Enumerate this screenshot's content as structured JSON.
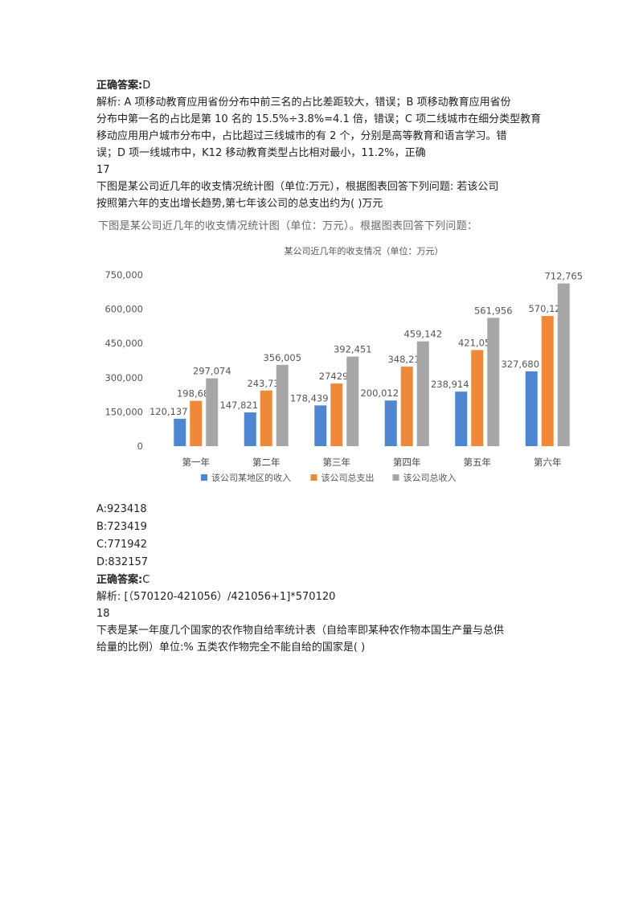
{
  "q16": {
    "answer_label": "正确答案:",
    "answer_value": "D",
    "analysis_lines": [
      "解析: A 项移动教育应用省份分布中前三名的占比差距较大，错误；B 项移动教育应用省份",
      "分布中第一名的占比是第 10 名的 15.5%÷3.8%=4.1 倍，错误；C 项二线城市在细分类型教育",
      "移动应用用户城市分布中，占比超过三线城市的有 2 个，分别是高等教育和语言学习。错",
      "误；D 项一线城市中，K12 移动教育类型占比相对最小，11.2%，正确"
    ]
  },
  "q17": {
    "number": "17",
    "question_lines": [
      "下图是某公司近几年的收支情况统计图（单位:万元），根据图表回答下列问题: 若该公司",
      "按照第六年的支出增长趋势,第七年该公司的总支出约为( )万元"
    ],
    "image_heading": "下图是某公司近几年的收支情况统计图（单位：万元）。根据图表回答下列问题：",
    "options": [
      "A:923418",
      "B:723419",
      "C:771942",
      "D:832157"
    ],
    "answer_label": "正确答案:",
    "answer_value": "C",
    "analysis": "解析: [（570120-421056）/421056+1]*570120"
  },
  "q18": {
    "number": "18",
    "question_lines": [
      "下表是某一年度几个国家的农作物自给率统计表（自给率即某种农作物本国生产量与总供",
      "给量的比例）单位:%  五类农作物完全不能自给的国家是( )"
    ]
  },
  "chart_data": {
    "type": "bar",
    "title": "某公司近几年的收支情况（单位：万元）",
    "categories": [
      "第一年",
      "第二年",
      "第三年",
      "第四年",
      "第五年",
      "第六年"
    ],
    "series": [
      {
        "name": "该公司某地区的收入",
        "color": "#4f86d1",
        "values": [
          120137,
          147821,
          178439,
          200012,
          238914,
          327680
        ],
        "labels": [
          "120,137",
          "147,821",
          "178,439",
          "200,012",
          "238,914",
          "327,680"
        ]
      },
      {
        "name": "该公司总支出",
        "color": "#f0883a",
        "values": [
          198682,
          243738,
          274290,
          348216,
          421056,
          570120
        ],
        "labels": [
          "198,682",
          "243,738",
          "274290",
          "348,216",
          "421,056",
          "570,120"
        ]
      },
      {
        "name": "该公司总收入",
        "color": "#a6a6a6",
        "values": [
          297074,
          356005,
          392451,
          459142,
          561956,
          712765
        ],
        "labels": [
          "297,074",
          "356,005",
          "392,451",
          "459,142",
          "561,956",
          "712,765"
        ]
      }
    ],
    "y_ticks": [
      "0",
      "150,000",
      "300,000",
      "450,000",
      "600,000",
      "750,000"
    ],
    "ylim": [
      0,
      750000
    ],
    "grid": false,
    "legend_position": "bottom"
  }
}
